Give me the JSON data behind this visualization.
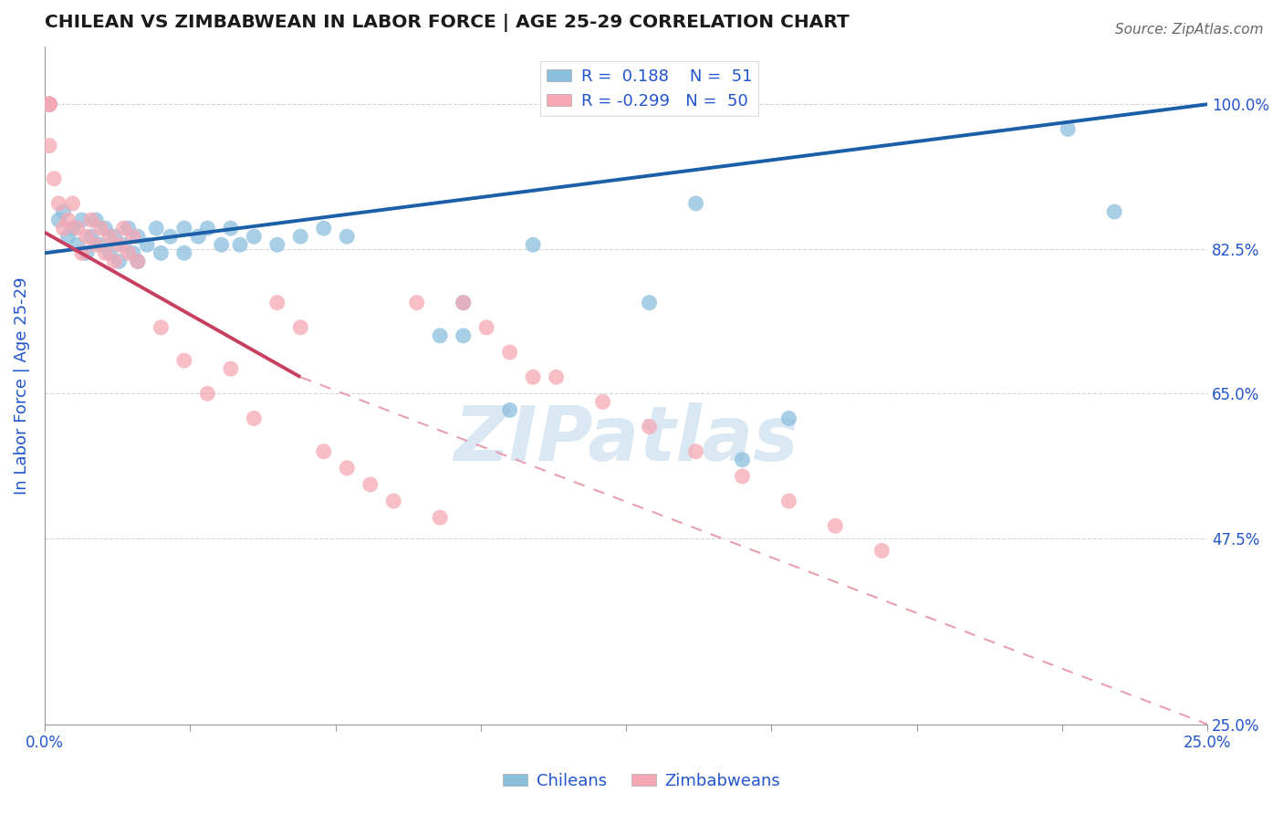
{
  "title": "CHILEAN VS ZIMBABWEAN IN LABOR FORCE | AGE 25-29 CORRELATION CHART",
  "source": "Source: ZipAtlas.com",
  "ylabel": "In Labor Force | Age 25-29",
  "xlim": [
    0.0,
    0.25
  ],
  "ylim": [
    0.25,
    1.07
  ],
  "ytick_vals": [
    0.25,
    0.475,
    0.65,
    0.825,
    1.0
  ],
  "ytick_labels": [
    "25.0%",
    "47.5%",
    "65.0%",
    "82.5%",
    "100.0%"
  ],
  "xtick_vals": [
    0.0,
    0.03125,
    0.0625,
    0.09375,
    0.125,
    0.15625,
    0.1875,
    0.21875,
    0.25
  ],
  "xtick_show": [
    "0.0%",
    "",
    "",
    "",
    "",
    "",
    "",
    "",
    "25.0%"
  ],
  "R_blue": 0.188,
  "N_blue": 51,
  "R_pink": -0.299,
  "N_pink": 50,
  "blue_dot": "#8bbfde",
  "pink_dot": "#f5a8b4",
  "line_blue_color": "#1a5fa8",
  "line_pink_solid_color": "#c84060",
  "line_pink_dash_color": "#e8a0b0",
  "grid_color": "#cccccc",
  "title_color": "#1a1a1a",
  "axis_label_color": "#2255cc",
  "watermark_color": "#dae8f4",
  "legend_label_color": "#2255cc",
  "blue_points_x": [
    0.001,
    0.001,
    0.001,
    0.001,
    0.001,
    0.003,
    0.004,
    0.005,
    0.006,
    0.007,
    0.008,
    0.009,
    0.01,
    0.011,
    0.012,
    0.013,
    0.014,
    0.015,
    0.016,
    0.017,
    0.018,
    0.019,
    0.02,
    0.02,
    0.022,
    0.024,
    0.025,
    0.027,
    0.03,
    0.03,
    0.033,
    0.035,
    0.038,
    0.04,
    0.042,
    0.045,
    0.05,
    0.055,
    0.06,
    0.065,
    0.085,
    0.09,
    0.1,
    0.105,
    0.13,
    0.14,
    0.15,
    0.16,
    0.22,
    0.23,
    0.09
  ],
  "blue_points_y": [
    1.0,
    1.0,
    1.0,
    1.0,
    1.0,
    0.86,
    0.87,
    0.84,
    0.85,
    0.83,
    0.86,
    0.82,
    0.84,
    0.86,
    0.83,
    0.85,
    0.82,
    0.84,
    0.81,
    0.83,
    0.85,
    0.82,
    0.84,
    0.81,
    0.83,
    0.85,
    0.82,
    0.84,
    0.85,
    0.82,
    0.84,
    0.85,
    0.83,
    0.85,
    0.83,
    0.84,
    0.83,
    0.84,
    0.85,
    0.84,
    0.72,
    0.76,
    0.63,
    0.83,
    0.76,
    0.88,
    0.57,
    0.62,
    0.97,
    0.87,
    0.72
  ],
  "pink_points_x": [
    0.001,
    0.001,
    0.001,
    0.001,
    0.001,
    0.001,
    0.002,
    0.003,
    0.004,
    0.005,
    0.006,
    0.007,
    0.008,
    0.009,
    0.01,
    0.011,
    0.012,
    0.013,
    0.014,
    0.015,
    0.016,
    0.017,
    0.018,
    0.019,
    0.02,
    0.025,
    0.03,
    0.035,
    0.04,
    0.045,
    0.05,
    0.055,
    0.06,
    0.065,
    0.07,
    0.075,
    0.08,
    0.085,
    0.09,
    0.095,
    0.1,
    0.105,
    0.11,
    0.12,
    0.13,
    0.14,
    0.15,
    0.16,
    0.17,
    0.18
  ],
  "pink_points_y": [
    1.0,
    1.0,
    1.0,
    1.0,
    1.0,
    0.95,
    0.91,
    0.88,
    0.85,
    0.86,
    0.88,
    0.85,
    0.82,
    0.84,
    0.86,
    0.83,
    0.85,
    0.82,
    0.84,
    0.81,
    0.83,
    0.85,
    0.82,
    0.84,
    0.81,
    0.73,
    0.69,
    0.65,
    0.68,
    0.62,
    0.76,
    0.73,
    0.58,
    0.56,
    0.54,
    0.52,
    0.76,
    0.5,
    0.76,
    0.73,
    0.7,
    0.67,
    0.67,
    0.64,
    0.61,
    0.58,
    0.55,
    0.52,
    0.49,
    0.46
  ],
  "blue_line": [
    [
      0.0,
      0.82
    ],
    [
      0.25,
      1.0
    ]
  ],
  "pink_line_solid": [
    [
      0.0,
      0.845
    ],
    [
      0.055,
      0.67
    ]
  ],
  "pink_line_dash": [
    [
      0.055,
      0.67
    ],
    [
      0.25,
      0.25
    ]
  ],
  "legend_blue_label": "Chileans",
  "legend_pink_label": "Zimbabweans"
}
